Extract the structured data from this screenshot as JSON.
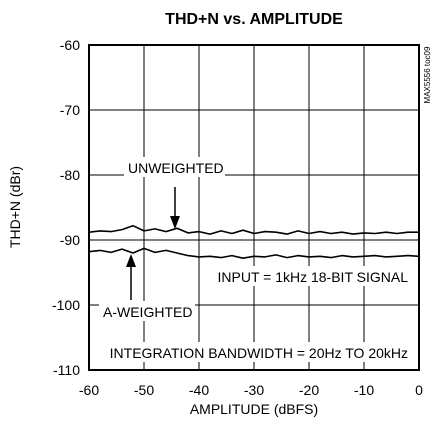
{
  "chart_data": {
    "type": "line",
    "title": "THD+N vs. AMPLITUDE",
    "xlabel": "AMPLITUDE (dBFS)",
    "ylabel": "THD+N (dBr)",
    "xlim": [
      -60,
      0
    ],
    "ylim": [
      -110,
      -60
    ],
    "xticks": [
      -60,
      -50,
      -40,
      -30,
      -20,
      -10,
      0
    ],
    "yticks": [
      -60,
      -70,
      -80,
      -90,
      -100,
      -110
    ],
    "grid": true,
    "reference_line_y": -90,
    "series": [
      {
        "name": "UNWEIGHTED",
        "x": [
          -60,
          -58,
          -56,
          -54,
          -52,
          -50,
          -48,
          -46,
          -44,
          -42,
          -40,
          -38,
          -36,
          -34,
          -32,
          -30,
          -28,
          -26,
          -24,
          -22,
          -20,
          -18,
          -16,
          -14,
          -12,
          -10,
          -8,
          -6,
          -4,
          -2,
          0
        ],
        "y": [
          -88.8,
          -88.6,
          -88.7,
          -88.4,
          -87.8,
          -88.6,
          -88.3,
          -88.7,
          -88.2,
          -88.9,
          -88.7,
          -89.1,
          -88.6,
          -89.0,
          -88.5,
          -89.0,
          -88.7,
          -88.8,
          -89.1,
          -88.6,
          -89.0,
          -88.7,
          -89.0,
          -88.8,
          -89.1,
          -88.9,
          -89.0,
          -88.8,
          -89.0,
          -88.8,
          -88.8
        ]
      },
      {
        "name": "A-WEIGHTED",
        "x": [
          -60,
          -58,
          -56,
          -54,
          -52,
          -50,
          -48,
          -46,
          -44,
          -42,
          -40,
          -38,
          -36,
          -34,
          -32,
          -30,
          -28,
          -26,
          -24,
          -22,
          -20,
          -18,
          -16,
          -14,
          -12,
          -10,
          -8,
          -6,
          -4,
          -2,
          0
        ],
        "y": [
          -91.8,
          -91.6,
          -91.9,
          -91.4,
          -92.0,
          -91.3,
          -91.9,
          -91.6,
          -92.0,
          -92.4,
          -92.6,
          -92.5,
          -92.7,
          -92.4,
          -92.8,
          -92.5,
          -92.6,
          -92.3,
          -92.7,
          -92.4,
          -92.6,
          -92.5,
          -92.7,
          -92.4,
          -92.6,
          -92.5,
          -92.4,
          -92.6,
          -92.5,
          -92.4,
          -92.5
        ]
      }
    ],
    "annotations": {
      "unweighted": "UNWEIGHTED",
      "a_weighted": "A-WEIGHTED",
      "input": "INPUT = 1kHz 18-BIT SIGNAL",
      "bandwidth": "INTEGRATION BANDWIDTH = 20Hz TO 20kHz"
    },
    "side_label": "MAX5556 toc09"
  }
}
